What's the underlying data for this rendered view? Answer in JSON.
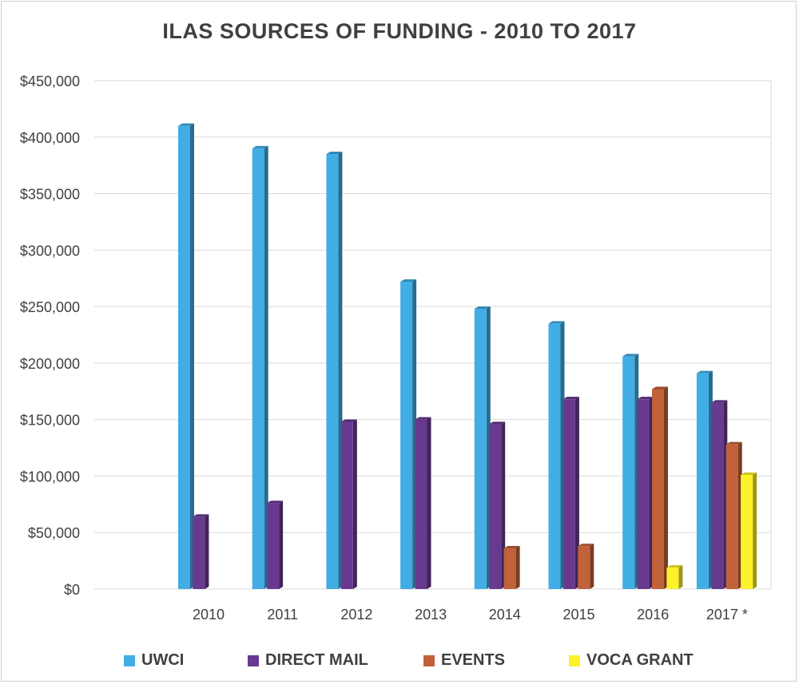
{
  "chart_data": {
    "type": "bar",
    "title": "ILAS SOURCES OF FUNDING - 2010 TO 2017",
    "categories": [
      "2010",
      "2011",
      "2012",
      "2013",
      "2014",
      "2015",
      "2016",
      "2017 *"
    ],
    "series": [
      {
        "name": "UWCI",
        "color": "#41ade4",
        "values": [
          410000,
          390000,
          385000,
          272000,
          248000,
          235000,
          206000,
          191000
        ]
      },
      {
        "name": "DIRECT MAIL",
        "color": "#673a8f",
        "values": [
          64000,
          76000,
          148000,
          150000,
          146000,
          168000,
          168000,
          165000
        ]
      },
      {
        "name": "EVENTS",
        "color": "#c1623a",
        "values": [
          null,
          null,
          null,
          null,
          36000,
          38000,
          177000,
          128000
        ]
      },
      {
        "name": "VOCA GRANT",
        "color": "#fdf22a",
        "values": [
          null,
          null,
          null,
          null,
          null,
          null,
          19000,
          101000
        ]
      }
    ],
    "yticks": [
      "$0",
      "$50,000",
      "$100,000",
      "$150,000",
      "$200,000",
      "$250,000",
      "$300,000",
      "$350,000",
      "$400,000",
      "$450,000"
    ],
    "ylim": [
      0,
      450000
    ],
    "grid": true,
    "legend": "bottom"
  }
}
